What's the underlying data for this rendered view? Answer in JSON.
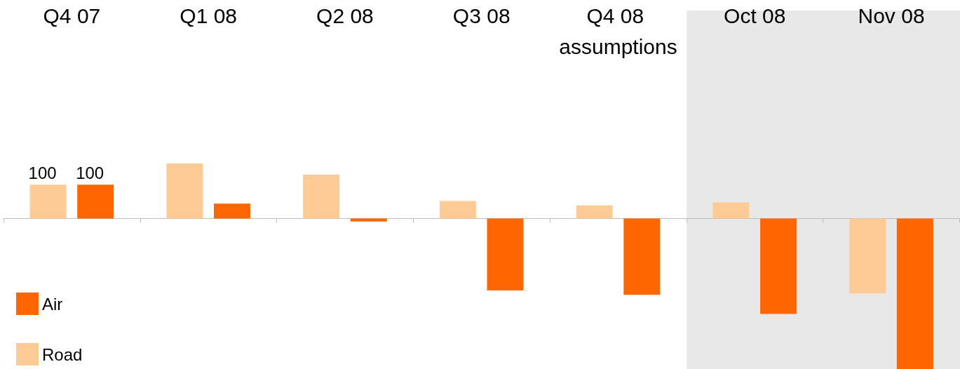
{
  "chart_data": {
    "type": "bar",
    "categories": [
      "Q4 07",
      "Q1 08",
      "Q2 08",
      "Q3 08",
      "Q4 08 assumptions",
      "Oct 08",
      "Nov 08"
    ],
    "series": [
      {
        "name": "Road",
        "color": "#fecb96",
        "values": [
          100,
          163,
          130,
          52,
          39,
          48,
          -222
        ],
        "value_labels": [
          "100",
          null,
          null,
          null,
          null,
          null,
          null
        ]
      },
      {
        "name": "Air",
        "color": "#ff6600",
        "values": [
          100,
          44,
          -9,
          -213,
          -226,
          -283,
          -446
        ],
        "value_labels": [
          "100",
          null,
          null,
          null,
          null,
          null,
          null
        ]
      }
    ],
    "legend": "bottom left",
    "bands": [
      {
        "axis": "x",
        "from": "Oct 08",
        "to": "Nov 08",
        "color": "#e8e8e8"
      }
    ]
  }
}
